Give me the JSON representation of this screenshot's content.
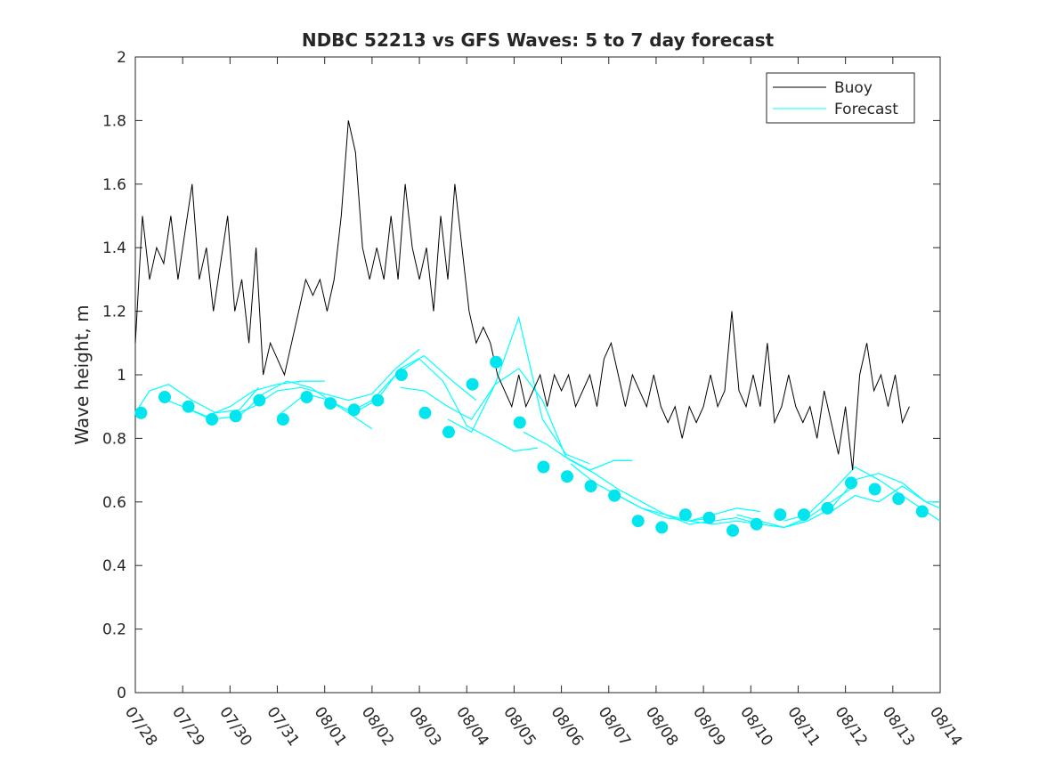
{
  "chart_data": {
    "type": "line",
    "title": "NDBC 52213 vs GFS Waves: 5 to 7 day forecast",
    "xlabel": "",
    "ylabel": "Wave height, m",
    "ylim": [
      0,
      2
    ],
    "y_ticks": [
      "0",
      "0.2",
      "0.4",
      "0.6",
      "0.8",
      "1",
      "1.2",
      "1.4",
      "1.6",
      "1.8",
      "2"
    ],
    "x_range_days": [
      0,
      17
    ],
    "x_tick_labels": [
      "07/28",
      "07/29",
      "07/30",
      "07/31",
      "08/01",
      "08/02",
      "08/03",
      "08/04",
      "08/05",
      "08/06",
      "08/07",
      "08/08",
      "08/09",
      "08/10",
      "08/11",
      "08/12",
      "08/13",
      "08/14"
    ],
    "legend": {
      "position": "top-right",
      "entries": [
        "Buoy",
        "Forecast"
      ]
    },
    "colors": {
      "buoy": "#000000",
      "forecast": "#00ffff",
      "markers": "#00e5ee"
    },
    "buoy_series": {
      "name": "Buoy",
      "x_days": [
        0.0,
        0.15,
        0.3,
        0.45,
        0.6,
        0.75,
        0.9,
        1.05,
        1.2,
        1.35,
        1.5,
        1.65,
        1.8,
        1.95,
        2.1,
        2.25,
        2.4,
        2.55,
        2.7,
        2.85,
        3.0,
        3.15,
        3.3,
        3.45,
        3.6,
        3.75,
        3.9,
        4.05,
        4.2,
        4.35,
        4.5,
        4.65,
        4.8,
        4.95,
        5.1,
        5.25,
        5.4,
        5.55,
        5.7,
        5.85,
        6.0,
        6.15,
        6.3,
        6.45,
        6.6,
        6.75,
        6.9,
        7.05,
        7.2,
        7.35,
        7.5,
        7.65,
        7.8,
        7.95,
        8.1,
        8.25,
        8.4,
        8.55,
        8.7,
        8.85,
        9.0,
        9.15,
        9.3,
        9.45,
        9.6,
        9.75,
        9.9,
        10.05,
        10.2,
        10.35,
        10.5,
        10.65,
        10.8,
        10.95,
        11.1,
        11.25,
        11.4,
        11.55,
        11.7,
        11.85,
        12.0,
        12.15,
        12.3,
        12.45,
        12.6,
        12.75,
        12.9,
        13.05,
        13.2,
        13.35,
        13.5,
        13.65,
        13.8,
        13.95,
        14.1,
        14.25,
        14.4,
        14.55,
        14.7,
        14.85,
        15.0,
        15.15,
        15.3,
        15.45,
        15.6,
        15.75,
        15.9,
        16.05,
        16.2,
        16.35
      ],
      "values": [
        1.1,
        1.5,
        1.3,
        1.4,
        1.35,
        1.5,
        1.3,
        1.45,
        1.6,
        1.3,
        1.4,
        1.2,
        1.35,
        1.5,
        1.2,
        1.3,
        1.1,
        1.4,
        1.0,
        1.1,
        1.05,
        1.0,
        1.1,
        1.2,
        1.3,
        1.25,
        1.3,
        1.2,
        1.3,
        1.5,
        1.8,
        1.7,
        1.4,
        1.3,
        1.4,
        1.3,
        1.5,
        1.3,
        1.6,
        1.4,
        1.3,
        1.4,
        1.2,
        1.5,
        1.3,
        1.6,
        1.4,
        1.2,
        1.1,
        1.15,
        1.1,
        1.0,
        0.95,
        0.9,
        1.0,
        0.9,
        0.95,
        1.0,
        0.9,
        1.0,
        0.95,
        1.0,
        0.9,
        0.95,
        1.0,
        0.9,
        1.05,
        1.1,
        1.0,
        0.9,
        1.0,
        0.95,
        0.9,
        1.0,
        0.9,
        0.85,
        0.9,
        0.8,
        0.9,
        0.85,
        0.9,
        1.0,
        0.9,
        0.95,
        1.2,
        0.95,
        0.9,
        1.0,
        0.9,
        1.1,
        0.85,
        0.9,
        1.0,
        0.9,
        0.85,
        0.9,
        0.8,
        0.95,
        0.85,
        0.75,
        0.9,
        0.7,
        1.0,
        1.1,
        0.95,
        1.0,
        0.9,
        1.0,
        0.85,
        0.9
      ]
    },
    "forecast_markers": {
      "x_days": [
        0.12,
        0.62,
        1.12,
        1.62,
        2.12,
        2.62,
        3.12,
        3.62,
        4.12,
        4.62,
        5.12,
        5.62,
        6.12,
        6.62,
        7.12,
        7.62,
        8.12,
        8.62,
        9.12,
        9.62,
        10.12,
        10.62,
        11.12,
        11.62,
        12.12,
        12.62,
        13.12,
        13.62,
        14.12,
        14.62,
        15.12,
        15.62,
        16.12,
        16.62
      ],
      "values": [
        0.88,
        0.93,
        0.9,
        0.86,
        0.87,
        0.92,
        0.86,
        0.93,
        0.91,
        0.89,
        0.92,
        1.0,
        0.88,
        0.82,
        0.97,
        1.04,
        0.85,
        0.71,
        0.68,
        0.65,
        0.62,
        0.54,
        0.52,
        0.56,
        0.55,
        0.51,
        0.53,
        0.56,
        0.56,
        0.58,
        0.66,
        0.64,
        0.61,
        0.57
      ]
    },
    "forecast_series": [
      {
        "x_days": [
          0.0,
          0.3,
          0.7,
          1.2,
          1.7,
          2.2,
          2.6
        ],
        "values": [
          0.88,
          0.95,
          0.97,
          0.92,
          0.88,
          0.89,
          0.96
        ]
      },
      {
        "x_days": [
          0.5,
          1.0,
          1.5,
          2.0,
          2.5,
          3.0,
          3.5,
          4.0
        ],
        "values": [
          0.93,
          0.9,
          0.87,
          0.9,
          0.95,
          0.97,
          0.98,
          0.98
        ]
      },
      {
        "x_days": [
          1.0,
          1.6,
          2.2,
          2.7,
          3.2,
          3.7,
          4.3,
          5.0
        ],
        "values": [
          0.9,
          0.86,
          0.87,
          0.94,
          0.98,
          0.96,
          0.9,
          0.83
        ]
      },
      {
        "x_days": [
          2.0,
          2.5,
          3.0,
          3.5,
          4.0,
          4.5,
          5.0,
          5.5,
          6.0
        ],
        "values": [
          0.87,
          0.9,
          0.95,
          0.96,
          0.94,
          0.92,
          0.94,
          1.02,
          1.08
        ]
      },
      {
        "x_days": [
          3.0,
          3.6,
          4.1,
          4.6,
          5.1,
          5.6,
          6.1,
          6.7,
          7.2
        ],
        "values": [
          0.87,
          0.94,
          0.92,
          0.88,
          0.92,
          1.02,
          1.06,
          0.98,
          0.92
        ]
      },
      {
        "x_days": [
          4.5,
          5.0,
          5.5,
          6.0,
          6.5,
          7.0,
          7.5,
          8.0,
          8.5
        ],
        "values": [
          0.88,
          0.92,
          1.0,
          1.05,
          0.98,
          0.84,
          0.8,
          0.76,
          0.77
        ]
      },
      {
        "x_days": [
          5.6,
          6.1,
          6.6,
          7.1,
          7.6,
          8.1,
          8.6,
          9.1,
          9.6
        ],
        "values": [
          0.96,
          0.95,
          0.9,
          0.86,
          0.97,
          1.18,
          0.86,
          0.75,
          0.72
        ]
      },
      {
        "x_days": [
          6.6,
          7.1,
          7.6,
          8.1,
          8.6,
          9.1,
          9.6,
          10.1,
          10.5
        ],
        "values": [
          0.86,
          0.82,
          0.97,
          1.02,
          0.92,
          0.74,
          0.7,
          0.73,
          0.73
        ]
      },
      {
        "x_days": [
          8.2,
          8.7,
          9.2,
          9.7,
          10.2,
          10.7,
          11.2,
          11.7,
          12.2
        ],
        "values": [
          0.82,
          0.78,
          0.73,
          0.69,
          0.64,
          0.6,
          0.56,
          0.54,
          0.55
        ]
      },
      {
        "x_days": [
          9.2,
          9.7,
          10.2,
          10.7,
          11.2,
          11.7,
          12.2,
          12.7,
          13.2
        ],
        "values": [
          0.72,
          0.66,
          0.62,
          0.58,
          0.55,
          0.54,
          0.56,
          0.58,
          0.57
        ]
      },
      {
        "x_days": [
          10.2,
          10.7,
          11.2,
          11.7,
          12.2,
          12.7,
          13.2,
          13.7,
          14.2
        ],
        "values": [
          0.62,
          0.58,
          0.56,
          0.54,
          0.53,
          0.54,
          0.53,
          0.52,
          0.54
        ]
      },
      {
        "x_days": [
          11.2,
          11.7,
          12.2,
          12.7,
          13.2,
          13.7,
          14.2,
          14.7,
          15.2
        ],
        "values": [
          0.56,
          0.53,
          0.54,
          0.55,
          0.53,
          0.52,
          0.55,
          0.6,
          0.65
        ]
      },
      {
        "x_days": [
          12.7,
          13.2,
          13.7,
          14.2,
          14.7,
          15.2,
          15.7,
          16.2,
          16.7,
          17.0
        ],
        "values": [
          0.56,
          0.54,
          0.52,
          0.54,
          0.58,
          0.67,
          0.69,
          0.66,
          0.6,
          0.58
        ]
      },
      {
        "x_days": [
          13.7,
          14.2,
          14.7,
          15.2,
          15.7,
          16.2,
          16.7,
          17.0
        ],
        "values": [
          0.54,
          0.56,
          0.63,
          0.71,
          0.67,
          0.62,
          0.57,
          0.54
        ]
      },
      {
        "x_days": [
          14.7,
          15.2,
          15.7,
          16.2,
          16.7,
          17.0
        ],
        "values": [
          0.57,
          0.62,
          0.6,
          0.65,
          0.6,
          0.6
        ]
      }
    ]
  }
}
